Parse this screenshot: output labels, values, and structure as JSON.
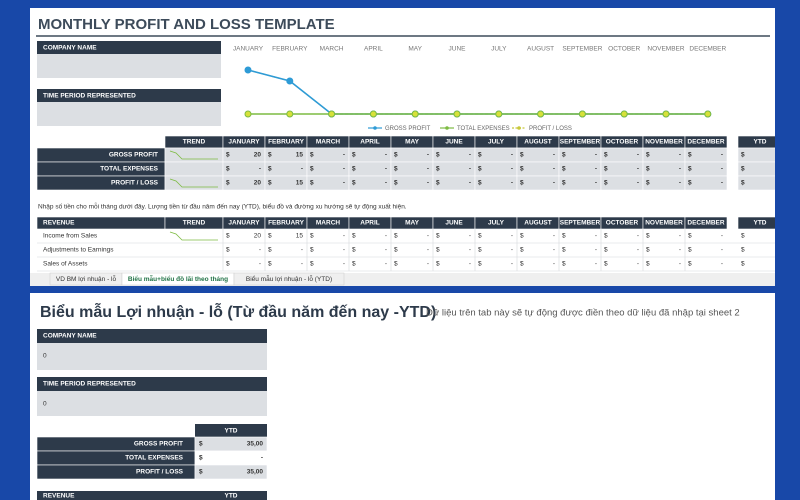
{
  "chart_data": {
    "type": "line",
    "categories": [
      "JANUARY",
      "FEBRUARY",
      "MARCH",
      "APRIL",
      "MAY",
      "JUNE",
      "JULY",
      "AUGUST",
      "SEPTEMBER",
      "OCTOBER",
      "NOVEMBER",
      "DECEMBER"
    ],
    "series": [
      {
        "name": "GROSS PROFIT",
        "color": "#2e9bd6",
        "values": [
          20,
          15,
          0,
          0,
          0,
          0,
          0,
          0,
          0,
          0,
          0,
          0
        ]
      },
      {
        "name": "TOTAL EXPENSES",
        "color": "#7dbb42",
        "values": [
          0,
          0,
          0,
          0,
          0,
          0,
          0,
          0,
          0,
          0,
          0,
          0
        ]
      },
      {
        "name": "PROFIT / LOSS",
        "color": "#c8c83a",
        "values": [
          20,
          15,
          0,
          0,
          0,
          0,
          0,
          0,
          0,
          0,
          0,
          0
        ]
      }
    ],
    "ylim": [
      0,
      20
    ],
    "legend": "bottom"
  },
  "sheet": {
    "title": "MONTHLY PROFIT AND LOSS TEMPLATE",
    "company_label": "COMPANY NAME",
    "period_label": "TIME PERIOD REPRESENTED",
    "currency": "$",
    "summary": {
      "trend": "TREND",
      "months": [
        "JANUARY",
        "FEBRUARY",
        "MARCH",
        "APRIL",
        "MAY",
        "JUNE",
        "JULY",
        "AUGUST",
        "SEPTEMBER",
        "OCTOBER",
        "NOVEMBER",
        "DECEMBER"
      ],
      "ytd": "YTD",
      "rows": [
        {
          "label": "GROSS PROFIT",
          "values": [
            20,
            15,
            "-",
            "-",
            "-",
            "-",
            "-",
            "-",
            "-",
            "-",
            "-",
            "-"
          ]
        },
        {
          "label": "TOTAL EXPENSES",
          "values": [
            "-",
            "-",
            "-",
            "-",
            "-",
            "-",
            "-",
            "-",
            "-",
            "-",
            "-",
            "-"
          ]
        },
        {
          "label": "PROFIT / LOSS",
          "values": [
            20,
            15,
            "-",
            "-",
            "-",
            "-",
            "-",
            "-",
            "-",
            "-",
            "-",
            "-"
          ]
        }
      ]
    },
    "note": "Nhập số tiền cho mỗi tháng dưới đây. Lượng tiền từ đầu năm đến nay (YTD), biểu đồ và đường xu hướng sẽ tự động xuất hiện.",
    "revenue": {
      "title": "REVENUE",
      "trend": "TREND",
      "months": [
        "JANUARY",
        "FEBRUARY",
        "MARCH",
        "APRIL",
        "MAY",
        "JUNE",
        "JULY",
        "AUGUST",
        "SEPTEMBER",
        "OCTOBER",
        "NOVEMBER",
        "DECEMBER"
      ],
      "ytd": "YTD",
      "rows": [
        {
          "label": "Income from Sales",
          "values": [
            20,
            15,
            "-",
            "-",
            "-",
            "-",
            "-",
            "-",
            "-",
            "-",
            "-",
            "-"
          ]
        },
        {
          "label": "Adjustments to Earnings",
          "values": [
            "-",
            "-",
            "-",
            "-",
            "-",
            "-",
            "-",
            "-",
            "-",
            "-",
            "-",
            "-"
          ]
        },
        {
          "label": "Sales of Assets",
          "values": [
            "-",
            "-",
            "-",
            "-",
            "-",
            "-",
            "-",
            "-",
            "-",
            "-",
            "-",
            "-"
          ]
        }
      ]
    },
    "tabs": [
      "VD BM lợi nhuận - lỗ",
      "Biểu mẫu+biểu đồ lãi theo tháng",
      "Biểu mẫu lợi nhuận - lỗ (YTD)"
    ]
  },
  "ytd_sheet": {
    "title": "Biểu mẫu Lợi nhuận - lỗ (Từ đầu năm đến nay -YTD)",
    "note": "Dữ liệu trên tab này sẽ tự động được điền theo dữ liệu đã nhập tại sheet 2",
    "company_label": "COMPANY NAME",
    "company_value": 0,
    "period_label": "TIME PERIOD REPRESENTED",
    "period_value": 0,
    "ytd": "YTD",
    "currency": "$",
    "rows": [
      {
        "label": "GROSS PROFIT",
        "value": "35,00"
      },
      {
        "label": "TOTAL EXPENSES",
        "value": "-"
      },
      {
        "label": "PROFIT / LOSS",
        "value": "35,00"
      }
    ],
    "revenue": "REVENUE",
    "revenue_ytd": "YTD"
  }
}
